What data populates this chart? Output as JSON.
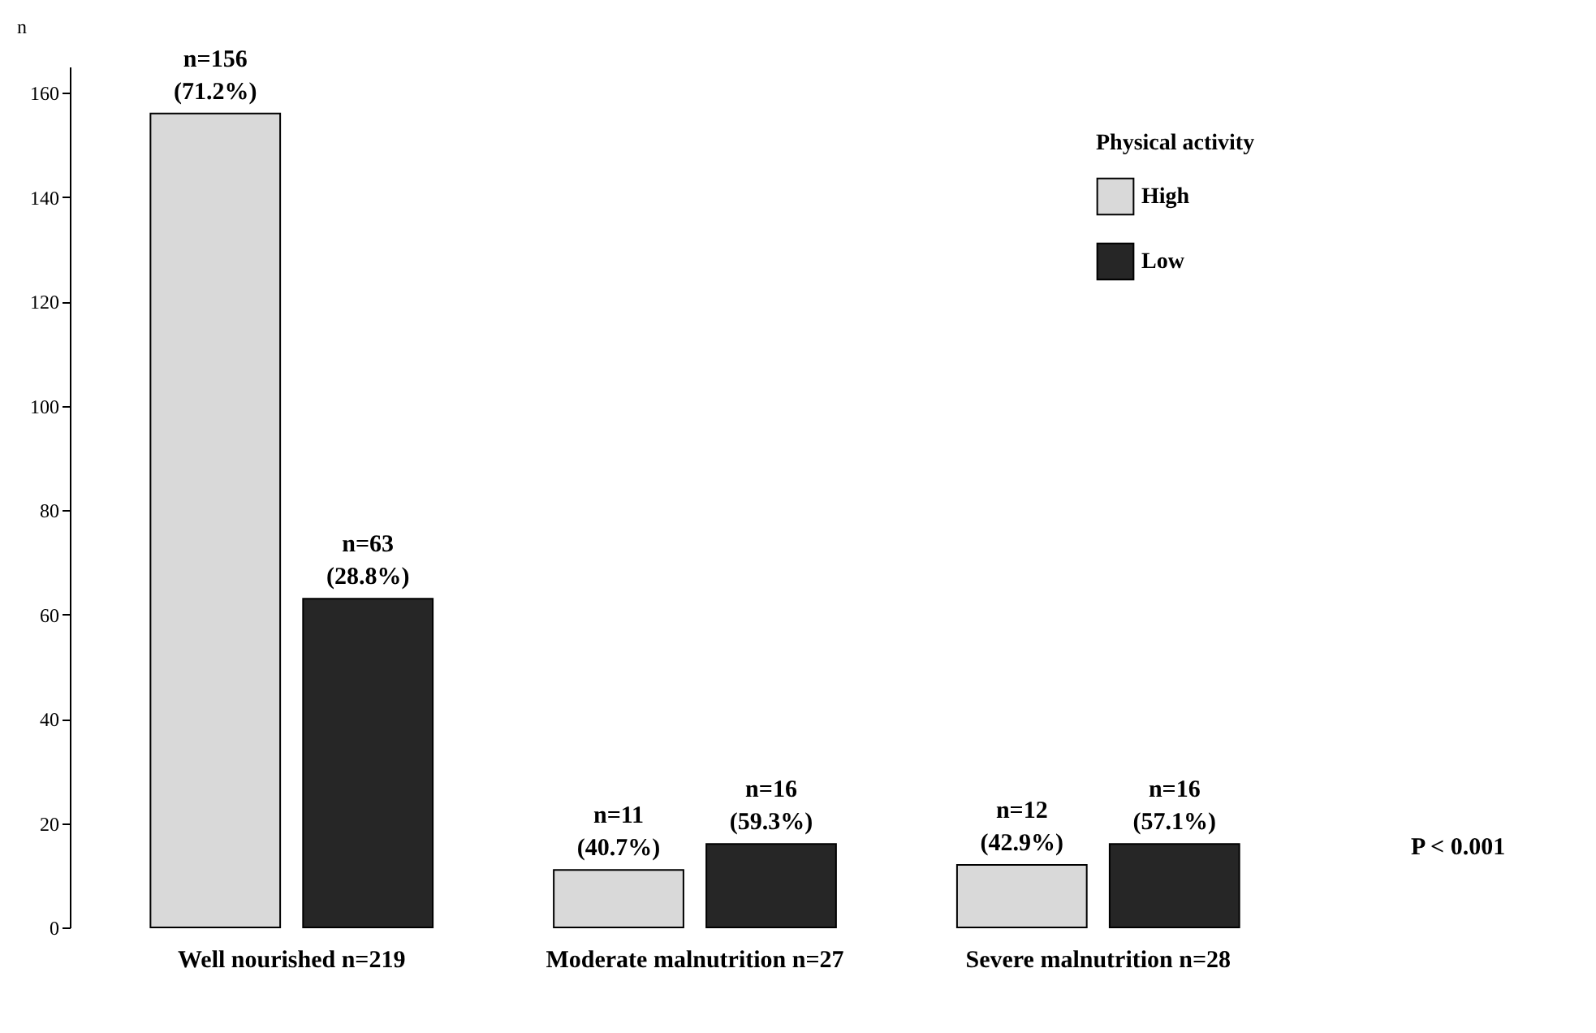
{
  "chart_data": {
    "type": "bar",
    "ylabel": "n",
    "legend_title": "Physical activity",
    "legend": "top right",
    "categories": [
      "Well nourished\nn=219",
      "Moderate malnutrition\nn=27",
      "Severe malnutrition\nn=28"
    ],
    "series": [
      {
        "name": "High",
        "color": "#d9d9d9",
        "values": [
          156,
          11,
          12
        ],
        "value_labels": [
          "n=156\n(71.2%)",
          "n=11\n(40.7%)",
          "n=12\n(42.9%)"
        ]
      },
      {
        "name": "Low",
        "color": "#262626",
        "values": [
          63,
          16,
          16
        ],
        "value_labels": [
          "n=63\n(28.8%)",
          "n=16\n(59.3%)",
          "n=16\n(57.1%)"
        ]
      }
    ],
    "ylim": [
      0,
      165
    ],
    "yticks": [
      0,
      20,
      40,
      60,
      80,
      100,
      120,
      140,
      160
    ],
    "grid": false,
    "annotations": [
      "P < 0.001"
    ]
  }
}
